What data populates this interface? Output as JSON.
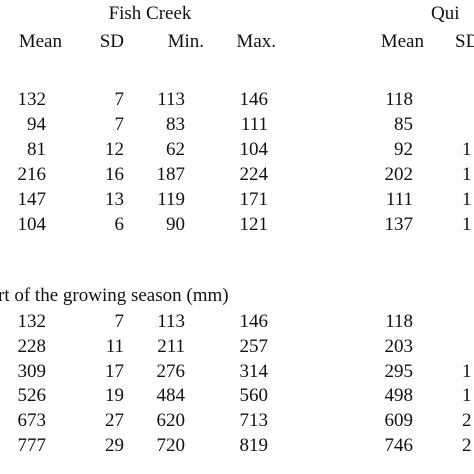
{
  "table": {
    "groups": [
      "Fish Creek",
      "Qui"
    ],
    "columns": [
      "Mean",
      "SD",
      "Min.",
      "Max.",
      "Mean",
      "SD"
    ],
    "blocks": [
      {
        "rows": [
          [
            132,
            7,
            113,
            146,
            118
          ],
          [
            94,
            7,
            83,
            111,
            85
          ],
          [
            81,
            12,
            62,
            104,
            92,
            "1"
          ],
          [
            216,
            16,
            187,
            224,
            202,
            "1"
          ],
          [
            147,
            13,
            119,
            171,
            111,
            "1"
          ],
          [
            104,
            6,
            90,
            121,
            137,
            "1"
          ]
        ]
      },
      {
        "label": "rt of the growing season (mm)",
        "rows": [
          [
            132,
            7,
            113,
            146,
            118
          ],
          [
            228,
            11,
            211,
            257,
            203
          ],
          [
            309,
            17,
            276,
            314,
            295,
            "1"
          ],
          [
            526,
            19,
            484,
            560,
            498,
            "1"
          ],
          [
            673,
            27,
            620,
            713,
            609,
            "2"
          ],
          [
            777,
            29,
            720,
            819,
            746,
            "2"
          ]
        ]
      }
    ]
  }
}
